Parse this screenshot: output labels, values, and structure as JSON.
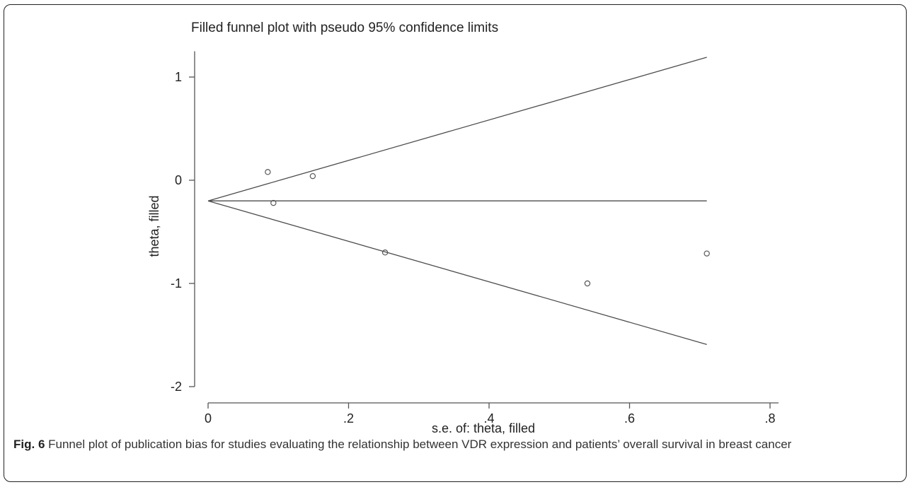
{
  "figure": {
    "caption_label": "Fig. 6",
    "caption_text": "Funnel plot of publication bias for studies evaluating the relationship between VDR expression and patients’ overall survival in breast cancer"
  },
  "chart_data": {
    "type": "scatter",
    "title": "Filled funnel plot with pseudo 95% confidence limits",
    "xlabel": "s.e. of: theta, filled",
    "ylabel": "theta, filled",
    "xlim": [
      0,
      0.8
    ],
    "ylim": [
      -2,
      1.25
    ],
    "x_ticks": [
      {
        "value": 0,
        "label": "0"
      },
      {
        "value": 0.2,
        "label": ".2"
      },
      {
        "value": 0.4,
        "label": ".4"
      },
      {
        "value": 0.6,
        "label": ".6"
      },
      {
        "value": 0.8,
        "label": ".8"
      }
    ],
    "y_ticks": [
      {
        "value": 1,
        "label": "1"
      },
      {
        "value": 0,
        "label": "0"
      },
      {
        "value": -1,
        "label": "-1"
      },
      {
        "value": -2,
        "label": "-2"
      }
    ],
    "grid": false,
    "legend": "none",
    "pooled_estimate": -0.2,
    "funnel_max_se": 0.71,
    "points": [
      {
        "x": 0.085,
        "y": 0.08
      },
      {
        "x": 0.093,
        "y": -0.22
      },
      {
        "x": 0.149,
        "y": 0.04
      },
      {
        "x": 0.252,
        "y": -0.7
      },
      {
        "x": 0.54,
        "y": -1.0
      },
      {
        "x": 0.71,
        "y": -0.71
      }
    ],
    "line_color": "#4d4d4d",
    "marker_color": "#555555"
  }
}
